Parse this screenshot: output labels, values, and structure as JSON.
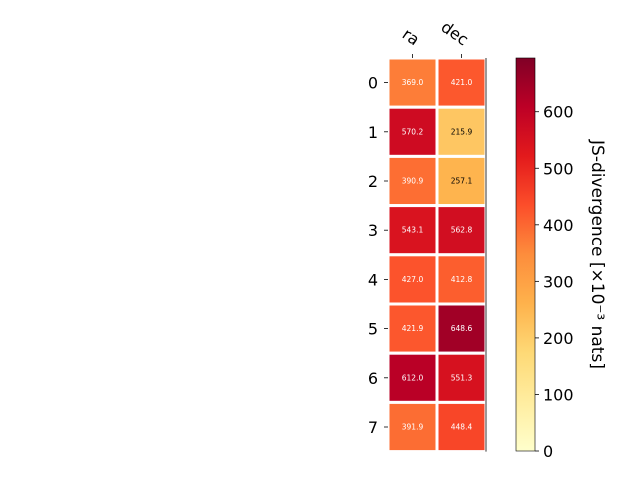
{
  "chart_data": {
    "type": "heatmap",
    "columns": [
      "ra",
      "dec"
    ],
    "rows": [
      "0",
      "1",
      "2",
      "3",
      "4",
      "5",
      "6",
      "7"
    ],
    "values": [
      [
        369.0,
        421.0
      ],
      [
        570.2,
        215.9
      ],
      [
        390.9,
        257.1
      ],
      [
        543.1,
        562.8
      ],
      [
        427.0,
        412.8
      ],
      [
        421.9,
        648.6
      ],
      [
        612.0,
        551.3
      ],
      [
        391.9,
        448.4
      ]
    ],
    "value_labels": [
      [
        "369.0",
        "421.0"
      ],
      [
        "570.2",
        "215.9"
      ],
      [
        "390.9",
        "257.1"
      ],
      [
        "543.1",
        "562.8"
      ],
      [
        "427.0",
        "412.8"
      ],
      [
        "421.9",
        "648.6"
      ],
      [
        "612.0",
        "551.3"
      ],
      [
        "391.9",
        "448.4"
      ]
    ],
    "colormap": "YlOrRd",
    "vmin": 0,
    "vmax": 695,
    "colorbar": {
      "label": "JS-divergence [×10⁻³ nats]",
      "ticks": [
        0,
        100,
        200,
        300,
        400,
        500,
        600
      ]
    },
    "colors": {
      "stops": [
        "#ffffcc",
        "#ffeda0",
        "#fed976",
        "#feb24c",
        "#fd8d3c",
        "#fc4e2a",
        "#e31a1c",
        "#bd0026",
        "#800026"
      ],
      "cell_border": "#ffffff",
      "text_light": "#ffffff",
      "text_dark": "#000000"
    }
  }
}
